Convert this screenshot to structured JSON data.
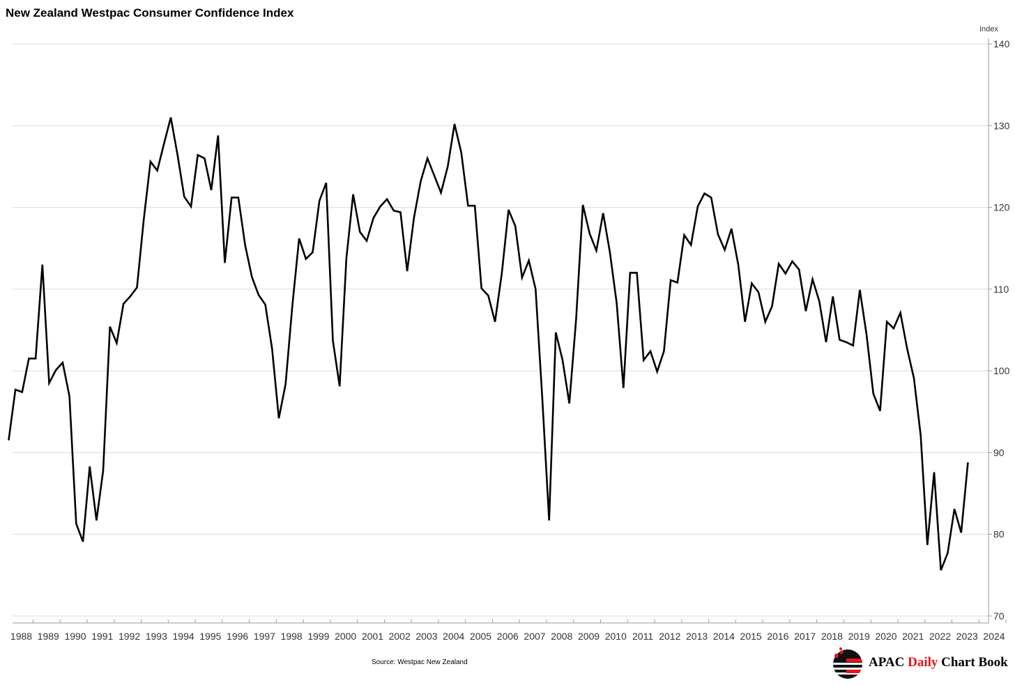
{
  "title": "New Zealand Westpac Consumer Confidence Index",
  "source": "Source: Westpac New Zealand",
  "brand": {
    "part1": "APAC ",
    "part2": "Daily",
    "part3": " Chart Book",
    "accent_color": "#e8141b"
  },
  "chart_data": {
    "type": "line",
    "title": "New Zealand Westpac Consumer Confidence Index",
    "ylabel": "Index",
    "xlabel": "",
    "ylim": [
      70,
      140
    ],
    "yticks": [
      70,
      80,
      90,
      100,
      110,
      120,
      130,
      140
    ],
    "xlim": [
      1988,
      2024
    ],
    "xticks": [
      "1988",
      "1989",
      "1990",
      "1991",
      "1992",
      "1993",
      "1994",
      "1995",
      "1996",
      "1997",
      "1998",
      "1999",
      "2000",
      "2001",
      "2002",
      "2003",
      "2004",
      "2005",
      "2006",
      "2007",
      "2008",
      "2009",
      "2010",
      "2011",
      "2012",
      "2013",
      "2014",
      "2015",
      "2016",
      "2017",
      "2018",
      "2019",
      "2020",
      "2021",
      "2022",
      "2023",
      "2024"
    ],
    "y_axis_side": "right",
    "grid": true,
    "line_color": "#000000",
    "series": [
      {
        "frequency": "quarterly",
        "start": "1988 Q1",
        "values": [
          91.5,
          97.7,
          97.4,
          101.5,
          101.5,
          113.0,
          98.5,
          100.1,
          101.0,
          96.9,
          81.3,
          79.1,
          88.3,
          81.7,
          87.8,
          105.4,
          103.4,
          108.2,
          109.1,
          110.2,
          118.5,
          125.6,
          124.5,
          127.8,
          131.0,
          126.4,
          121.3,
          120.1,
          126.4,
          126.0,
          122.1,
          128.8,
          113.2,
          121.2,
          121.2,
          115.4,
          111.5,
          109.3,
          108.1,
          102.7,
          94.2,
          98.4,
          108.0,
          116.2,
          113.7,
          114.5,
          120.8,
          123.0,
          103.7,
          98.1,
          113.8,
          121.6,
          117.0,
          115.9,
          118.7,
          120.1,
          121.0,
          119.6,
          119.4,
          112.2,
          118.7,
          123.2,
          126.0,
          123.9,
          121.8,
          125.0,
          130.2,
          126.7,
          120.2,
          120.2,
          110.1,
          109.2,
          106.0,
          111.9,
          119.7,
          117.7,
          111.4,
          113.5,
          110.0,
          96.5,
          81.7,
          104.7,
          101.3,
          96.0,
          106.3,
          120.3,
          116.8,
          114.7,
          119.3,
          114.5,
          108.3,
          97.9,
          112.0,
          112.0,
          101.3,
          102.4,
          99.9,
          102.4,
          111.1,
          110.8,
          116.6,
          115.4,
          120.1,
          121.7,
          121.2,
          116.7,
          114.8,
          117.4,
          113.0,
          106.0,
          110.7,
          109.6,
          106.0,
          107.9,
          113.1,
          111.9,
          113.4,
          112.4,
          107.3,
          111.2,
          108.5,
          103.5,
          109.1,
          103.8,
          103.5,
          103.1,
          109.9,
          104.4,
          97.2,
          95.1,
          106.0,
          105.2,
          107.1,
          102.7,
          99.1,
          92.1,
          78.7,
          87.6,
          75.6,
          77.7,
          83.1,
          80.2,
          88.8
        ]
      }
    ]
  }
}
